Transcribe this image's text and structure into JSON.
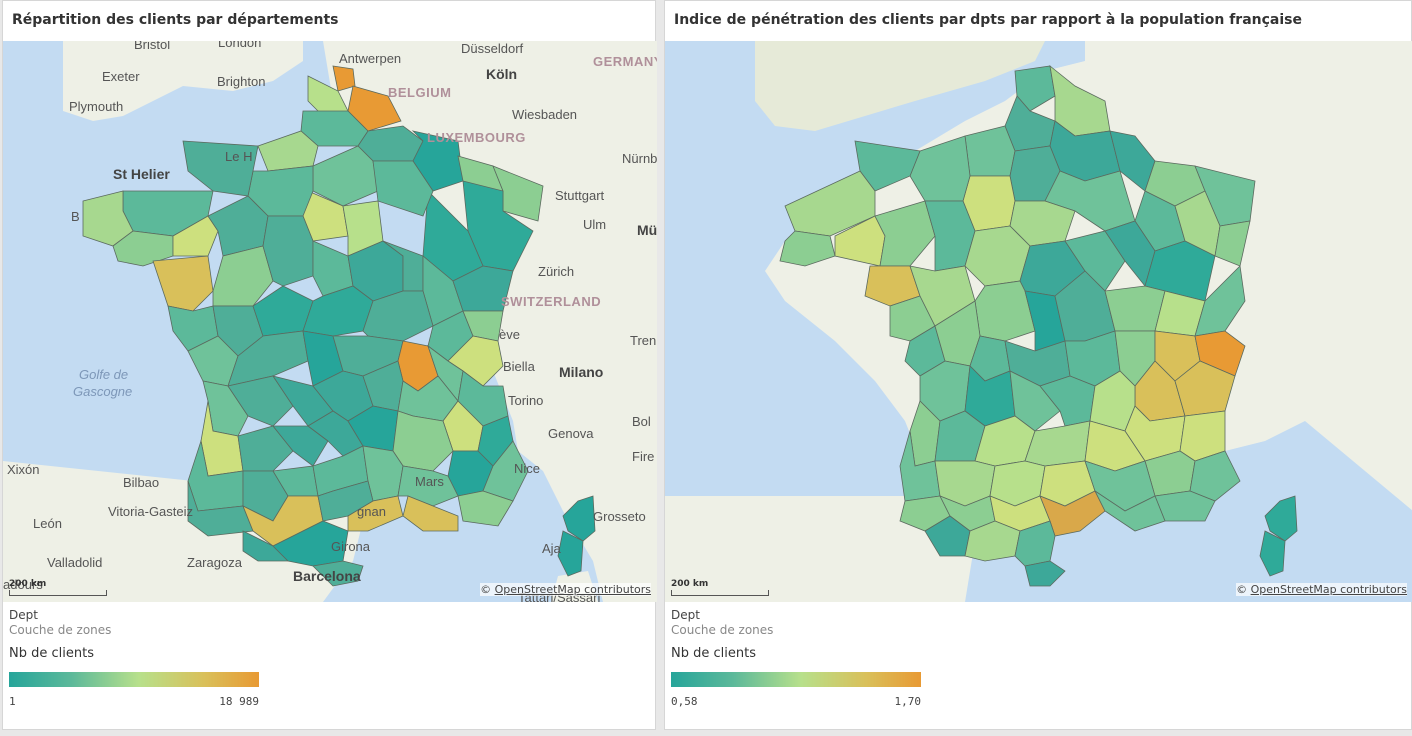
{
  "left_panel": {
    "title": "Répartition des clients par départements",
    "legend": {
      "dimension": "Dept",
      "layer": "Couche de zones",
      "measure": "Nb de clients",
      "min": "1",
      "max": "18 989"
    },
    "scale": "200 km",
    "attribution_symbol": "©",
    "attribution": "OpenStreetMap contributors"
  },
  "right_panel": {
    "title": "Indice de pénétration des clients par dpts par rapport à la population française",
    "legend": {
      "dimension": "Dept",
      "layer": "Couche de zones",
      "measure": "Nb de clients",
      "min": "0,58",
      "max": "1,70"
    },
    "scale": "200 km",
    "attribution_symbol": "©",
    "attribution": "OpenStreetMap contributors"
  },
  "colors": {
    "low": "#26a59a",
    "mid": "#b7e08b",
    "high": "#e89a34",
    "sea": "#c3dbf2",
    "land": "#eef0e6"
  },
  "left_map_labels": {
    "bristol": "Bristol",
    "london": "London",
    "antwerpen": "Antwerpen",
    "dusseldorf": "Düsseldorf",
    "germany": "GERMANY",
    "exeter": "Exeter",
    "brighton": "Brighton",
    "koln": "Köln",
    "belgium": "BELGIUM",
    "plymouth": "Plymouth",
    "wiesbaden": "Wiesbaden",
    "luxembourg": "LUXEMBOURG",
    "lehavre": "Le H",
    "nurnberg": "Nürnb",
    "sthelier": "St Helier",
    "stuttgart": "Stuttgart",
    "ulm": "Ulm",
    "mu": "Mü",
    "zurich": "Zürich",
    "switzerland": "SWITZERLAND",
    "geneve": "ève",
    "trento": "Tren",
    "golfe1": "Golfe de",
    "golfe2": "Gascogne",
    "biella": "Biella",
    "milano": "Milano",
    "torino": "Torino",
    "bologna": "Bol",
    "genova": "Genova",
    "firenze": "Fire",
    "xixon": "Xixón",
    "bilbao": "Bilbao",
    "nice": "Nice",
    "marseille": "Mars",
    "vitoria": "Vitoria-Gasteiz",
    "narbonne": "gnan",
    "grosseto": "Grosseto",
    "leon": "León",
    "girona": "Girona",
    "ajaccio": "Aja",
    "valladolid": "Valladolid",
    "zaragoza": "Zaragoza",
    "barcelona": "Barcelona",
    "bordeaux": "adours",
    "sassari": "Tattari/Sassari",
    "brest": "B"
  }
}
